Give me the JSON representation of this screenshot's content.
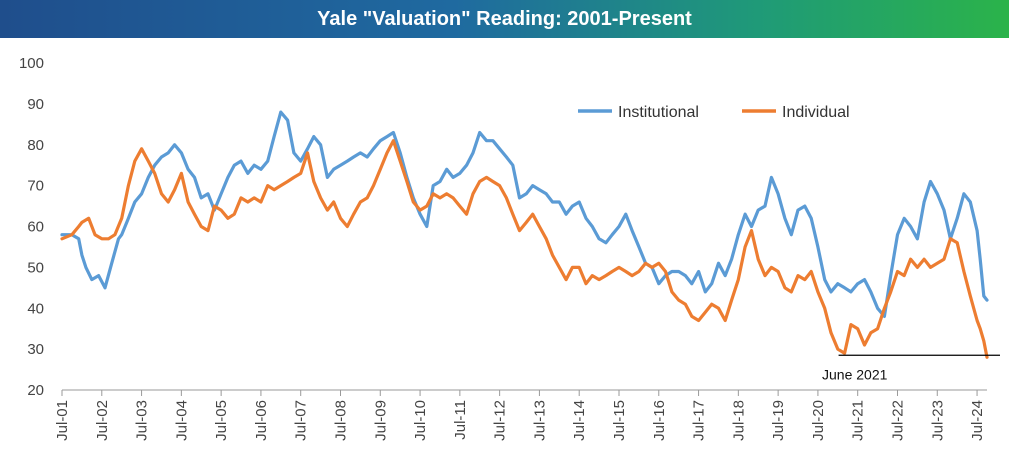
{
  "header": {
    "title": "Yale \"Valuation\" Reading: 2001-Present"
  },
  "colors": {
    "institutional": "#5b9bd5",
    "individual": "#ed7d31",
    "annotation_line": "#000000"
  },
  "chart_data": {
    "type": "line",
    "title": "Yale \"Valuation\" Reading: 2001-Present",
    "xlabel": "",
    "ylabel": "",
    "ylim": [
      20,
      100
    ],
    "yticks": [
      20,
      30,
      40,
      50,
      60,
      70,
      80,
      90,
      100
    ],
    "xlim": [
      2001.5,
      2024.75
    ],
    "xticks": [
      {
        "x": 2001.5,
        "label": "Jul-01"
      },
      {
        "x": 2002.5,
        "label": "Jul-02"
      },
      {
        "x": 2003.5,
        "label": "Jul-03"
      },
      {
        "x": 2004.5,
        "label": "Jul-04"
      },
      {
        "x": 2005.5,
        "label": "Jul-05"
      },
      {
        "x": 2006.5,
        "label": "Jul-06"
      },
      {
        "x": 2007.5,
        "label": "Jul-07"
      },
      {
        "x": 2008.5,
        "label": "Jul-08"
      },
      {
        "x": 2009.5,
        "label": "Jul-09"
      },
      {
        "x": 2010.5,
        "label": "Jul-10"
      },
      {
        "x": 2011.5,
        "label": "Jul-11"
      },
      {
        "x": 2012.5,
        "label": "Jul-12"
      },
      {
        "x": 2013.5,
        "label": "Jul-13"
      },
      {
        "x": 2014.5,
        "label": "Jul-14"
      },
      {
        "x": 2015.5,
        "label": "Jul-15"
      },
      {
        "x": 2016.5,
        "label": "Jul-16"
      },
      {
        "x": 2017.5,
        "label": "Jul-17"
      },
      {
        "x": 2018.5,
        "label": "Jul-18"
      },
      {
        "x": 2019.5,
        "label": "Jul-19"
      },
      {
        "x": 2020.5,
        "label": "Jul-20"
      },
      {
        "x": 2021.5,
        "label": "Jul-21"
      },
      {
        "x": 2022.5,
        "label": "Jul-22"
      },
      {
        "x": 2023.5,
        "label": "Jul-23"
      },
      {
        "x": 2024.5,
        "label": "Jul-24"
      }
    ],
    "grid": false,
    "legend": "top-right",
    "series": [
      {
        "name": "Institutional",
        "points": [
          [
            2001.5,
            58
          ],
          [
            2001.75,
            58
          ],
          [
            2001.92,
            57
          ],
          [
            2002.0,
            53
          ],
          [
            2002.1,
            50
          ],
          [
            2002.25,
            47
          ],
          [
            2002.42,
            48
          ],
          [
            2002.58,
            45
          ],
          [
            2002.75,
            51
          ],
          [
            2002.92,
            57
          ],
          [
            2003.0,
            58
          ],
          [
            2003.17,
            62
          ],
          [
            2003.33,
            66
          ],
          [
            2003.5,
            68
          ],
          [
            2003.67,
            72
          ],
          [
            2003.83,
            75
          ],
          [
            2004.0,
            77
          ],
          [
            2004.17,
            78
          ],
          [
            2004.33,
            80
          ],
          [
            2004.5,
            78
          ],
          [
            2004.67,
            74
          ],
          [
            2004.83,
            72
          ],
          [
            2005.0,
            67
          ],
          [
            2005.17,
            68
          ],
          [
            2005.33,
            64
          ],
          [
            2005.5,
            68
          ],
          [
            2005.67,
            72
          ],
          [
            2005.83,
            75
          ],
          [
            2006.0,
            76
          ],
          [
            2006.17,
            73
          ],
          [
            2006.33,
            75
          ],
          [
            2006.5,
            74
          ],
          [
            2006.67,
            76
          ],
          [
            2006.83,
            82
          ],
          [
            2007.0,
            88
          ],
          [
            2007.17,
            86
          ],
          [
            2007.33,
            78
          ],
          [
            2007.5,
            76
          ],
          [
            2007.67,
            79
          ],
          [
            2007.83,
            82
          ],
          [
            2008.0,
            80
          ],
          [
            2008.17,
            72
          ],
          [
            2008.33,
            74
          ],
          [
            2008.5,
            75
          ],
          [
            2008.67,
            76
          ],
          [
            2008.83,
            77
          ],
          [
            2009.0,
            78
          ],
          [
            2009.17,
            77
          ],
          [
            2009.33,
            79
          ],
          [
            2009.5,
            81
          ],
          [
            2009.67,
            82
          ],
          [
            2009.83,
            83
          ],
          [
            2010.0,
            78
          ],
          [
            2010.17,
            72
          ],
          [
            2010.33,
            67
          ],
          [
            2010.5,
            63
          ],
          [
            2010.67,
            60
          ],
          [
            2010.83,
            70
          ],
          [
            2011.0,
            71
          ],
          [
            2011.17,
            74
          ],
          [
            2011.33,
            72
          ],
          [
            2011.5,
            73
          ],
          [
            2011.67,
            75
          ],
          [
            2011.83,
            78
          ],
          [
            2012.0,
            83
          ],
          [
            2012.17,
            81
          ],
          [
            2012.33,
            81
          ],
          [
            2012.5,
            79
          ],
          [
            2012.67,
            77
          ],
          [
            2012.83,
            75
          ],
          [
            2013.0,
            67
          ],
          [
            2013.17,
            68
          ],
          [
            2013.33,
            70
          ],
          [
            2013.5,
            69
          ],
          [
            2013.67,
            68
          ],
          [
            2013.83,
            66
          ],
          [
            2014.0,
            66
          ],
          [
            2014.17,
            63
          ],
          [
            2014.33,
            65
          ],
          [
            2014.5,
            66
          ],
          [
            2014.67,
            62
          ],
          [
            2014.83,
            60
          ],
          [
            2015.0,
            57
          ],
          [
            2015.17,
            56
          ],
          [
            2015.33,
            58
          ],
          [
            2015.5,
            60
          ],
          [
            2015.67,
            63
          ],
          [
            2015.83,
            59
          ],
          [
            2016.0,
            55
          ],
          [
            2016.17,
            51
          ],
          [
            2016.33,
            50
          ],
          [
            2016.5,
            46
          ],
          [
            2016.67,
            48
          ],
          [
            2016.83,
            49
          ],
          [
            2017.0,
            49
          ],
          [
            2017.17,
            48
          ],
          [
            2017.33,
            46
          ],
          [
            2017.5,
            49
          ],
          [
            2017.67,
            44
          ],
          [
            2017.83,
            46
          ],
          [
            2018.0,
            51
          ],
          [
            2018.17,
            48
          ],
          [
            2018.33,
            52
          ],
          [
            2018.5,
            58
          ],
          [
            2018.67,
            63
          ],
          [
            2018.83,
            60
          ],
          [
            2019.0,
            64
          ],
          [
            2019.17,
            65
          ],
          [
            2019.33,
            72
          ],
          [
            2019.5,
            68
          ],
          [
            2019.67,
            62
          ],
          [
            2019.83,
            58
          ],
          [
            2020.0,
            64
          ],
          [
            2020.17,
            65
          ],
          [
            2020.33,
            62
          ],
          [
            2020.5,
            55
          ],
          [
            2020.67,
            47
          ],
          [
            2020.83,
            44
          ],
          [
            2021.0,
            46
          ],
          [
            2021.17,
            45
          ],
          [
            2021.33,
            44
          ],
          [
            2021.5,
            46
          ],
          [
            2021.67,
            47
          ],
          [
            2021.83,
            44
          ],
          [
            2022.0,
            40
          ],
          [
            2022.17,
            38
          ],
          [
            2022.33,
            48
          ],
          [
            2022.5,
            58
          ],
          [
            2022.67,
            62
          ],
          [
            2022.83,
            60
          ],
          [
            2023.0,
            57
          ],
          [
            2023.17,
            66
          ],
          [
            2023.33,
            71
          ],
          [
            2023.5,
            68
          ],
          [
            2023.67,
            64
          ],
          [
            2023.83,
            57
          ],
          [
            2024.0,
            62
          ],
          [
            2024.17,
            68
          ],
          [
            2024.33,
            66
          ],
          [
            2024.5,
            59
          ],
          [
            2024.58,
            52
          ],
          [
            2024.67,
            43
          ],
          [
            2024.75,
            42
          ]
        ]
      },
      {
        "name": "Individual",
        "points": [
          [
            2001.5,
            57
          ],
          [
            2001.75,
            58
          ],
          [
            2001.92,
            60
          ],
          [
            2002.0,
            61
          ],
          [
            2002.17,
            62
          ],
          [
            2002.33,
            58
          ],
          [
            2002.5,
            57
          ],
          [
            2002.67,
            57
          ],
          [
            2002.83,
            58
          ],
          [
            2003.0,
            62
          ],
          [
            2003.17,
            70
          ],
          [
            2003.33,
            76
          ],
          [
            2003.5,
            79
          ],
          [
            2003.67,
            76
          ],
          [
            2003.83,
            73
          ],
          [
            2004.0,
            68
          ],
          [
            2004.17,
            66
          ],
          [
            2004.33,
            69
          ],
          [
            2004.5,
            73
          ],
          [
            2004.67,
            66
          ],
          [
            2004.83,
            63
          ],
          [
            2005.0,
            60
          ],
          [
            2005.17,
            59
          ],
          [
            2005.33,
            65
          ],
          [
            2005.5,
            64
          ],
          [
            2005.67,
            62
          ],
          [
            2005.83,
            63
          ],
          [
            2006.0,
            67
          ],
          [
            2006.17,
            66
          ],
          [
            2006.33,
            67
          ],
          [
            2006.5,
            66
          ],
          [
            2006.67,
            70
          ],
          [
            2006.83,
            69
          ],
          [
            2007.0,
            70
          ],
          [
            2007.17,
            71
          ],
          [
            2007.33,
            72
          ],
          [
            2007.5,
            73
          ],
          [
            2007.67,
            78
          ],
          [
            2007.83,
            71
          ],
          [
            2008.0,
            67
          ],
          [
            2008.17,
            64
          ],
          [
            2008.33,
            66
          ],
          [
            2008.5,
            62
          ],
          [
            2008.67,
            60
          ],
          [
            2008.83,
            63
          ],
          [
            2009.0,
            66
          ],
          [
            2009.17,
            67
          ],
          [
            2009.33,
            70
          ],
          [
            2009.5,
            74
          ],
          [
            2009.67,
            78
          ],
          [
            2009.83,
            81
          ],
          [
            2010.0,
            76
          ],
          [
            2010.17,
            71
          ],
          [
            2010.33,
            66
          ],
          [
            2010.5,
            64
          ],
          [
            2010.67,
            65
          ],
          [
            2010.83,
            68
          ],
          [
            2011.0,
            67
          ],
          [
            2011.17,
            68
          ],
          [
            2011.33,
            67
          ],
          [
            2011.5,
            65
          ],
          [
            2011.67,
            63
          ],
          [
            2011.83,
            68
          ],
          [
            2012.0,
            71
          ],
          [
            2012.17,
            72
          ],
          [
            2012.33,
            71
          ],
          [
            2012.5,
            70
          ],
          [
            2012.67,
            67
          ],
          [
            2012.83,
            63
          ],
          [
            2013.0,
            59
          ],
          [
            2013.17,
            61
          ],
          [
            2013.33,
            63
          ],
          [
            2013.5,
            60
          ],
          [
            2013.67,
            57
          ],
          [
            2013.83,
            53
          ],
          [
            2014.0,
            50
          ],
          [
            2014.17,
            47
          ],
          [
            2014.33,
            50
          ],
          [
            2014.5,
            50
          ],
          [
            2014.67,
            46
          ],
          [
            2014.83,
            48
          ],
          [
            2015.0,
            47
          ],
          [
            2015.17,
            48
          ],
          [
            2015.33,
            49
          ],
          [
            2015.5,
            50
          ],
          [
            2015.67,
            49
          ],
          [
            2015.83,
            48
          ],
          [
            2016.0,
            49
          ],
          [
            2016.17,
            51
          ],
          [
            2016.33,
            50
          ],
          [
            2016.5,
            51
          ],
          [
            2016.67,
            49
          ],
          [
            2016.83,
            44
          ],
          [
            2017.0,
            42
          ],
          [
            2017.17,
            41
          ],
          [
            2017.33,
            38
          ],
          [
            2017.5,
            37
          ],
          [
            2017.67,
            39
          ],
          [
            2017.83,
            41
          ],
          [
            2018.0,
            40
          ],
          [
            2018.17,
            37
          ],
          [
            2018.33,
            42
          ],
          [
            2018.5,
            47
          ],
          [
            2018.67,
            55
          ],
          [
            2018.83,
            59
          ],
          [
            2019.0,
            52
          ],
          [
            2019.17,
            48
          ],
          [
            2019.33,
            50
          ],
          [
            2019.5,
            49
          ],
          [
            2019.67,
            45
          ],
          [
            2019.83,
            44
          ],
          [
            2020.0,
            48
          ],
          [
            2020.17,
            47
          ],
          [
            2020.33,
            49
          ],
          [
            2020.5,
            44
          ],
          [
            2020.67,
            40
          ],
          [
            2020.83,
            34
          ],
          [
            2021.0,
            30
          ],
          [
            2021.17,
            29
          ],
          [
            2021.33,
            36
          ],
          [
            2021.5,
            35
          ],
          [
            2021.67,
            31
          ],
          [
            2021.83,
            34
          ],
          [
            2022.0,
            35
          ],
          [
            2022.17,
            40
          ],
          [
            2022.33,
            44
          ],
          [
            2022.5,
            49
          ],
          [
            2022.67,
            48
          ],
          [
            2022.83,
            52
          ],
          [
            2023.0,
            50
          ],
          [
            2023.17,
            52
          ],
          [
            2023.33,
            50
          ],
          [
            2023.5,
            51
          ],
          [
            2023.67,
            52
          ],
          [
            2023.83,
            57
          ],
          [
            2024.0,
            56
          ],
          [
            2024.17,
            49
          ],
          [
            2024.33,
            43
          ],
          [
            2024.5,
            37
          ],
          [
            2024.58,
            35
          ],
          [
            2024.67,
            32
          ],
          [
            2024.75,
            28
          ]
        ]
      }
    ],
    "annotations": [
      {
        "text": "June 2021",
        "line_y": 28.5,
        "line_x": [
          2021.17,
          2024.75
        ]
      }
    ]
  }
}
